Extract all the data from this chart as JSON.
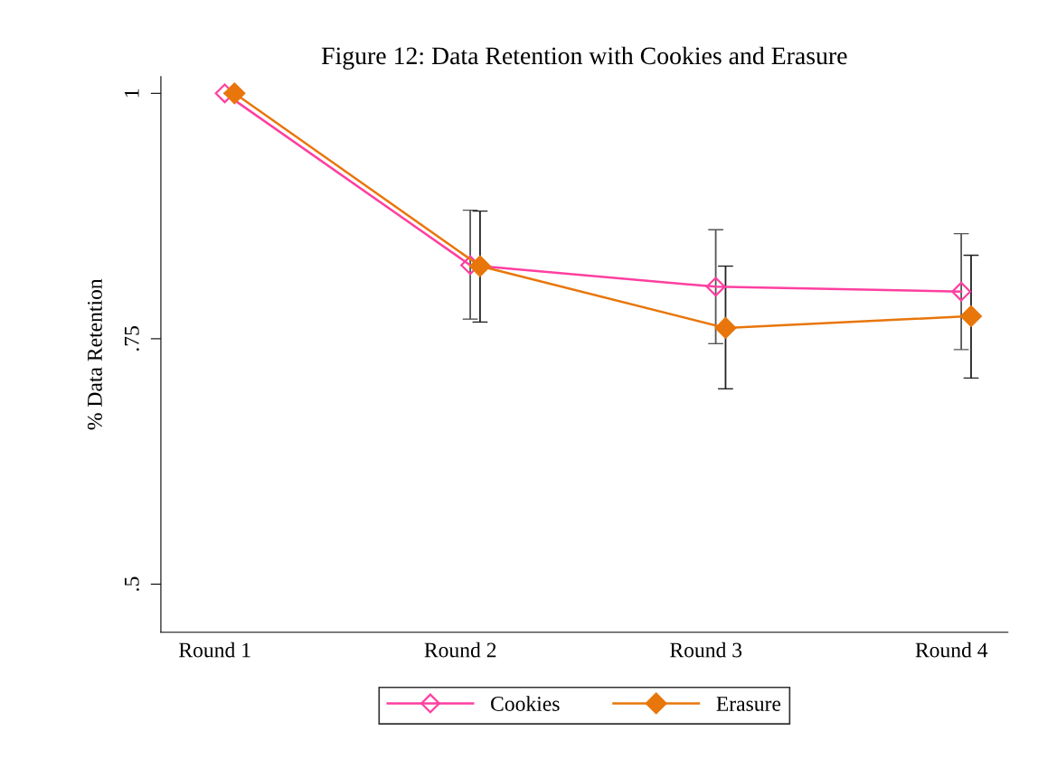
{
  "chart_data": {
    "type": "line",
    "title": "Figure 12: Data Retention with Cookies and Erasure",
    "ylabel": "% Data Retention",
    "categories": [
      "Round 1",
      "Round 2",
      "Round 3",
      "Round 4"
    ],
    "series": [
      {
        "name": "Cookies",
        "color": "#ff3fa0",
        "marker": "diamond",
        "values": [
          1.0,
          0.825,
          0.803,
          0.798
        ],
        "errors": [
          null,
          [
            0.77,
            0.881
          ],
          [
            0.745,
            0.861
          ],
          [
            0.739,
            0.857
          ]
        ]
      },
      {
        "name": "Erasure",
        "color": "#e8760a",
        "marker": "diamond",
        "values": [
          1.0,
          0.824,
          0.761,
          0.773
        ],
        "errors": [
          null,
          [
            0.767,
            0.88
          ],
          [
            0.699,
            0.824
          ],
          [
            0.71,
            0.835
          ]
        ]
      }
    ],
    "ylim": [
      0.451,
      1.017
    ],
    "yticks": [
      {
        "value": 0.5,
        "label": ".5"
      },
      {
        "value": 0.75,
        "label": ".75"
      },
      {
        "value": 1,
        "label": "1"
      }
    ],
    "grid": false,
    "legend": "bottom",
    "line_style": "solid"
  }
}
